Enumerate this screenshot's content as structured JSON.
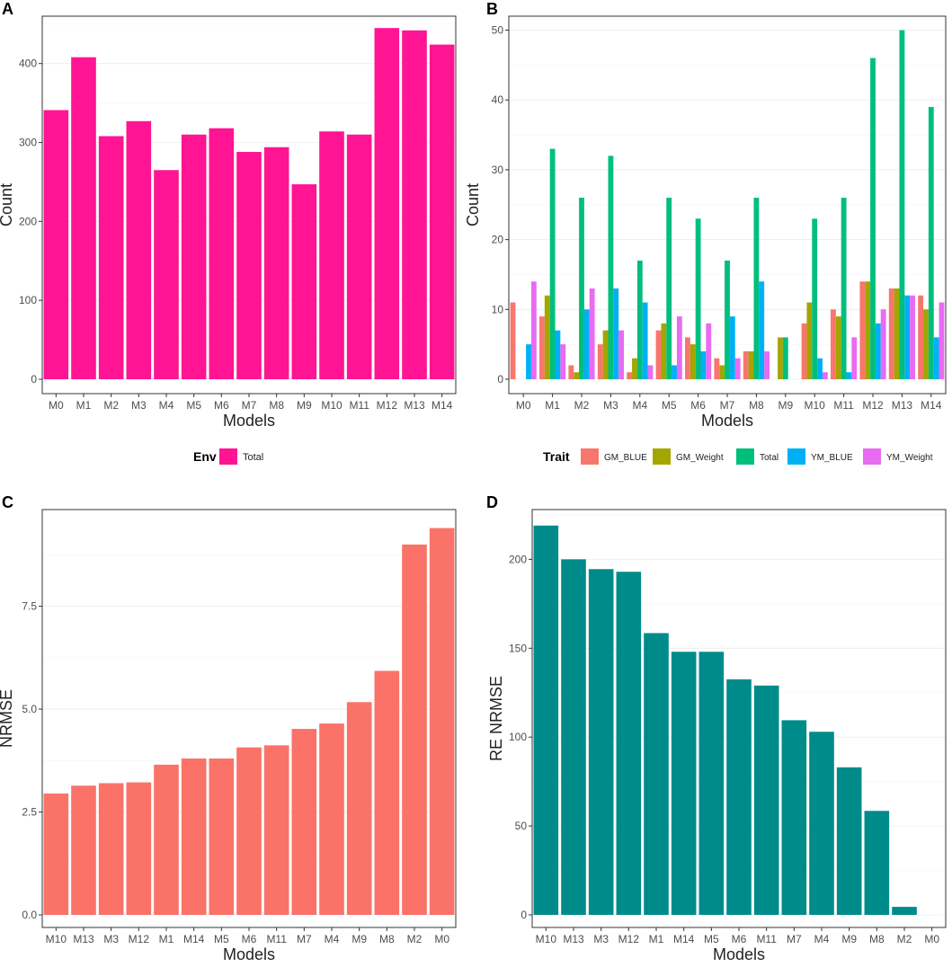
{
  "chart_data": [
    {
      "panel": "A",
      "type": "bar",
      "title": "",
      "xlabel": "Models",
      "ylabel": "Count",
      "ylim": [
        0,
        460
      ],
      "yticks": [
        0,
        100,
        200,
        300,
        400
      ],
      "ytick_labels": [
        "0",
        "100",
        "200",
        "300",
        "400"
      ],
      "categories": [
        "M0",
        "M1",
        "M2",
        "M3",
        "M4",
        "M5",
        "M6",
        "M7",
        "M8",
        "M9",
        "M10",
        "M11",
        "M12",
        "M13",
        "M14"
      ],
      "series": [
        {
          "name": "Total",
          "color": "#ff1493",
          "values": [
            341,
            408,
            308,
            327,
            265,
            310,
            318,
            288,
            294,
            247,
            314,
            310,
            445,
            442,
            424
          ]
        }
      ],
      "legend": {
        "title": "Env",
        "placement": "bottom",
        "entries": [
          "Total"
        ]
      }
    },
    {
      "panel": "B",
      "type": "bar",
      "title": "",
      "xlabel": "Models",
      "ylabel": "Count",
      "ylim": [
        0,
        52
      ],
      "yticks": [
        0,
        10,
        20,
        30,
        40,
        50
      ],
      "ytick_labels": [
        "0",
        "10",
        "20",
        "30",
        "40",
        "50"
      ],
      "categories": [
        "M0",
        "M1",
        "M2",
        "M3",
        "M4",
        "M5",
        "M6",
        "M7",
        "M8",
        "M9",
        "M10",
        "M11",
        "M12",
        "M13",
        "M14"
      ],
      "series": [
        {
          "name": "GM_BLUE",
          "color": "#f8766d",
          "values": [
            11,
            9,
            2,
            5,
            1,
            7,
            6,
            3,
            4,
            0,
            8,
            10,
            14,
            13,
            12
          ]
        },
        {
          "name": "GM_Weight",
          "color": "#a3a500",
          "values": [
            0,
            12,
            1,
            7,
            3,
            8,
            5,
            2,
            4,
            6,
            11,
            9,
            14,
            13,
            10
          ]
        },
        {
          "name": "Total",
          "color": "#00bf7d",
          "values": [
            0,
            33,
            26,
            32,
            17,
            26,
            23,
            17,
            26,
            6,
            23,
            26,
            46,
            50,
            39
          ]
        },
        {
          "name": "YM_BLUE",
          "color": "#00b0f6",
          "values": [
            5,
            7,
            10,
            13,
            11,
            2,
            4,
            9,
            14,
            0,
            3,
            1,
            8,
            12,
            6
          ]
        },
        {
          "name": "YM_Weight",
          "color": "#e76bf3",
          "values": [
            14,
            5,
            13,
            7,
            2,
            9,
            8,
            3,
            4,
            0,
            1,
            6,
            10,
            12,
            11
          ]
        }
      ],
      "legend": {
        "title": "Trait",
        "placement": "bottom",
        "entries": [
          "GM_BLUE",
          "GM_Weight",
          "Total",
          "YM_BLUE",
          "YM_Weight"
        ]
      }
    },
    {
      "panel": "C",
      "type": "bar",
      "title": "",
      "xlabel": "Models",
      "ylabel": "NRMSE",
      "ylim": [
        0,
        9.85
      ],
      "yticks": [
        0,
        2.5,
        5.0,
        7.5
      ],
      "ytick_labels": [
        "0.0",
        "2.5",
        "5.0",
        "7.5"
      ],
      "categories": [
        "M10",
        "M13",
        "M3",
        "M12",
        "M1",
        "M14",
        "M5",
        "M6",
        "M11",
        "M7",
        "M4",
        "M9",
        "M8",
        "M2",
        "M0"
      ],
      "series": [
        {
          "name": "NRMSE",
          "color": "#fa7268",
          "values": [
            2.95,
            3.14,
            3.2,
            3.22,
            3.65,
            3.8,
            3.8,
            4.07,
            4.12,
            4.52,
            4.65,
            5.17,
            5.93,
            9.0,
            9.4
          ]
        }
      ]
    },
    {
      "panel": "D",
      "type": "bar",
      "title": "",
      "xlabel": "Models",
      "ylabel": "RE NRMSE",
      "ylim": [
        0,
        228
      ],
      "yticks": [
        0,
        50,
        100,
        150,
        200
      ],
      "ytick_labels": [
        "0",
        "50",
        "100",
        "150",
        "200"
      ],
      "categories": [
        "M10",
        "M13",
        "M3",
        "M12",
        "M1",
        "M14",
        "M5",
        "M6",
        "M11",
        "M7",
        "M4",
        "M9",
        "M8",
        "M2",
        "M0"
      ],
      "series": [
        {
          "name": "RE NRMSE",
          "color": "#008b8b",
          "values": [
            219,
            200,
            194.5,
            193,
            158.5,
            148,
            148,
            132.5,
            129,
            109.5,
            103,
            83,
            58.5,
            4.5,
            0
          ]
        }
      ]
    }
  ],
  "panel_labels": [
    "A",
    "B",
    "C",
    "D"
  ]
}
